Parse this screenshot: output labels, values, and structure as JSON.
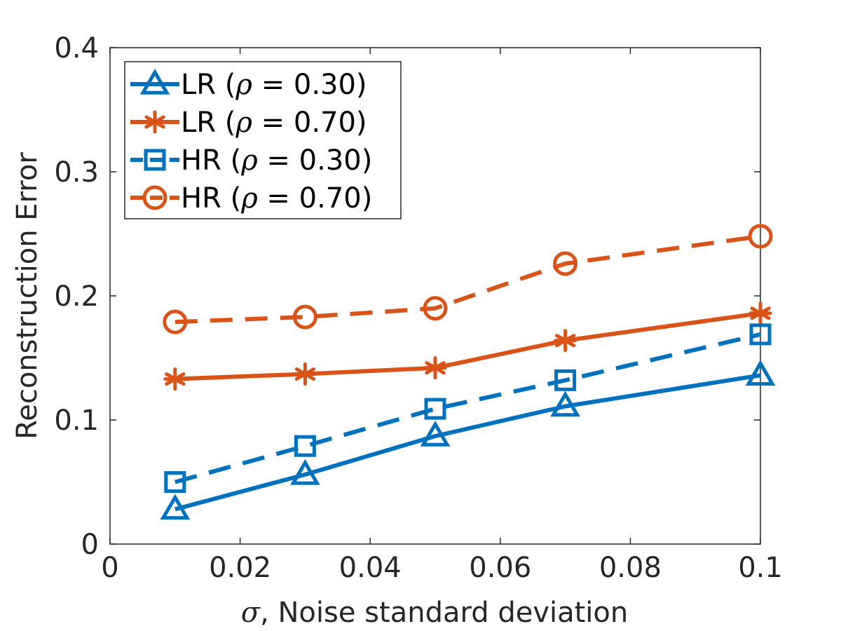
{
  "chart_data": {
    "type": "line",
    "title": "",
    "xlabel_symbol": "σ",
    "xlabel_text": ", Noise standard deviation",
    "ylabel": "Reconstruction Error",
    "xlim": [
      0,
      0.1
    ],
    "ylim": [
      0,
      0.4
    ],
    "xticks": [
      0,
      0.02,
      0.04,
      0.06,
      0.08,
      0.1
    ],
    "xtick_labels": [
      "0",
      "0.02",
      "0.04",
      "0.06",
      "0.08",
      "0.1"
    ],
    "yticks": [
      0,
      0.1,
      0.2,
      0.3,
      0.4
    ],
    "ytick_labels": [
      "0",
      "0.1",
      "0.2",
      "0.3",
      "0.4"
    ],
    "grid": false,
    "legend_position": "top-left",
    "x": [
      0.01,
      0.03,
      0.05,
      0.07,
      0.1
    ],
    "series": [
      {
        "name_prefix": "LR (",
        "name_symbol": "ρ",
        "name_suffix": " = 0.30)",
        "values": [
          0.028,
          0.056,
          0.087,
          0.111,
          0.136
        ],
        "color": "#0072BD",
        "line_style": "solid",
        "marker": "triangle"
      },
      {
        "name_prefix": "LR (",
        "name_symbol": "ρ",
        "name_suffix": " = 0.70)",
        "values": [
          0.133,
          0.137,
          0.142,
          0.164,
          0.186
        ],
        "color": "#D95319",
        "line_style": "solid",
        "marker": "asterisk"
      },
      {
        "name_prefix": "HR (",
        "name_symbol": "ρ",
        "name_suffix": " = 0.30)",
        "values": [
          0.05,
          0.079,
          0.109,
          0.132,
          0.169
        ],
        "color": "#0072BD",
        "line_style": "dashed",
        "marker": "square"
      },
      {
        "name_prefix": "HR (",
        "name_symbol": "ρ",
        "name_suffix": " = 0.70)",
        "values": [
          0.179,
          0.183,
          0.19,
          0.226,
          0.248
        ],
        "color": "#D95319",
        "line_style": "dashed",
        "marker": "circle"
      }
    ]
  }
}
